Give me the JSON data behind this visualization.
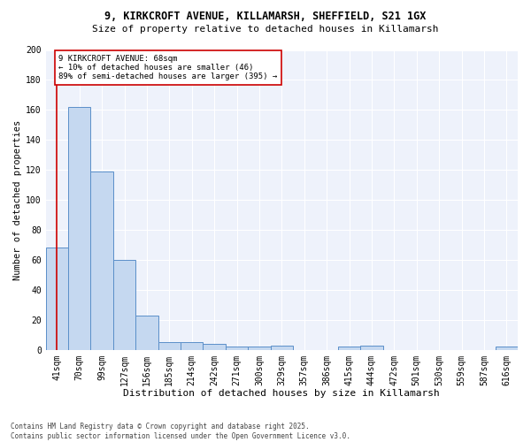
{
  "title_line1": "9, KIRKCROFT AVENUE, KILLAMARSH, SHEFFIELD, S21 1GX",
  "title_line2": "Size of property relative to detached houses in Killamarsh",
  "xlabel": "Distribution of detached houses by size in Killamarsh",
  "ylabel": "Number of detached properties",
  "categories": [
    "41sqm",
    "70sqm",
    "99sqm",
    "127sqm",
    "156sqm",
    "185sqm",
    "214sqm",
    "242sqm",
    "271sqm",
    "300sqm",
    "329sqm",
    "357sqm",
    "386sqm",
    "415sqm",
    "444sqm",
    "472sqm",
    "501sqm",
    "530sqm",
    "559sqm",
    "587sqm",
    "616sqm"
  ],
  "values": [
    68,
    162,
    119,
    60,
    23,
    5,
    5,
    4,
    2,
    2,
    3,
    0,
    0,
    2,
    3,
    0,
    0,
    0,
    0,
    0,
    2
  ],
  "bar_color": "#c5d8f0",
  "bar_edge_color": "#5b8fc9",
  "marker_line_color": "#cc0000",
  "annotation_box_color": "#cc0000",
  "annotation_text_line1": "9 KIRKCROFT AVENUE: 68sqm",
  "annotation_text_line2": "← 10% of detached houses are smaller (46)",
  "annotation_text_line3": "89% of semi-detached houses are larger (395) →",
  "ylim": [
    0,
    200
  ],
  "yticks": [
    0,
    20,
    40,
    60,
    80,
    100,
    120,
    140,
    160,
    180,
    200
  ],
  "footer_line1": "Contains HM Land Registry data © Crown copyright and database right 2025.",
  "footer_line2": "Contains public sector information licensed under the Open Government Licence v3.0.",
  "bg_color": "#ffffff",
  "plot_bg_color": "#eef2fb",
  "grid_color": "#ffffff",
  "title1_fontsize": 8.5,
  "title2_fontsize": 8.0,
  "xlabel_fontsize": 8.0,
  "ylabel_fontsize": 7.5,
  "tick_fontsize": 7.0,
  "annot_fontsize": 6.5,
  "footer_fontsize": 5.5
}
